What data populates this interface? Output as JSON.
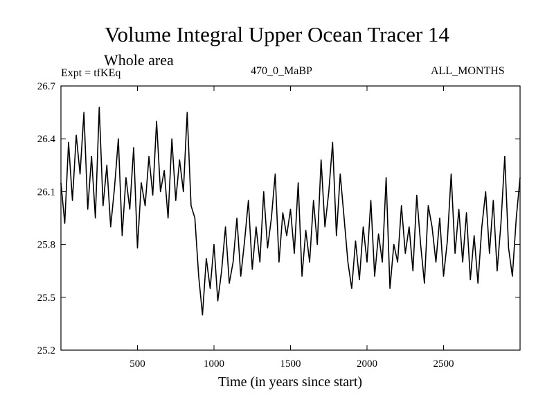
{
  "header": {
    "title": "Volume Integral Upper Ocean Tracer 14",
    "subtitle": "Whole area",
    "expt": "Expt = tfKEq",
    "run": "470_0_MaBP",
    "months": "ALL_MONTHS"
  },
  "chart_data": {
    "type": "line",
    "title": "Volume Integral Upper Ocean Tracer 14",
    "subtitle": "Whole area",
    "xlabel": "Time (in years since start)",
    "ylabel": "",
    "xlim": [
      0,
      3000
    ],
    "ylim": [
      25.2,
      26.7
    ],
    "xticks": [
      500,
      1000,
      1500,
      2000,
      2500
    ],
    "yticks": [
      25.2,
      25.5,
      25.8,
      26.1,
      26.4,
      26.7
    ],
    "ytick_labels": [
      "25.2",
      "25.5",
      "25.8",
      "26.1",
      "26.4",
      "26.7"
    ],
    "grid": false,
    "line_color": "#000000",
    "series": [
      {
        "x": [
          0,
          25,
          50,
          75,
          100,
          125,
          150,
          175,
          200,
          225,
          250,
          275,
          300,
          325,
          350,
          375,
          400,
          425,
          450,
          475,
          500,
          525,
          550,
          575,
          600,
          625,
          650,
          675,
          700,
          725,
          750,
          775,
          800,
          825,
          850,
          875,
          900,
          925,
          950,
          975,
          1000,
          1025,
          1050,
          1075,
          1100,
          1125,
          1150,
          1175,
          1200,
          1225,
          1250,
          1275,
          1300,
          1325,
          1350,
          1375,
          1400,
          1425,
          1450,
          1475,
          1500,
          1525,
          1550,
          1575,
          1600,
          1625,
          1650,
          1675,
          1700,
          1725,
          1750,
          1775,
          1800,
          1825,
          1850,
          1875,
          1900,
          1925,
          1950,
          1975,
          2000,
          2025,
          2050,
          2075,
          2100,
          2125,
          2150,
          2175,
          2200,
          2225,
          2250,
          2275,
          2300,
          2325,
          2350,
          2375,
          2400,
          2425,
          2450,
          2475,
          2500,
          2525,
          2550,
          2575,
          2600,
          2625,
          2650,
          2675,
          2700,
          2725,
          2750,
          2775,
          2800,
          2825,
          2850,
          2875,
          2900,
          2925,
          2950,
          2975,
          3000
        ],
        "values": [
          26.15,
          25.92,
          26.38,
          26.05,
          26.42,
          26.2,
          26.55,
          26.0,
          26.3,
          25.95,
          26.58,
          26.02,
          26.25,
          25.9,
          26.12,
          26.4,
          25.85,
          26.18,
          26.0,
          26.35,
          25.78,
          26.15,
          26.02,
          26.3,
          26.08,
          26.5,
          26.1,
          26.22,
          25.95,
          26.4,
          26.05,
          26.28,
          26.1,
          26.55,
          26.02,
          25.95,
          25.62,
          25.4,
          25.72,
          25.55,
          25.8,
          25.48,
          25.65,
          25.9,
          25.58,
          25.7,
          25.95,
          25.62,
          25.82,
          26.05,
          25.66,
          25.9,
          25.7,
          26.1,
          25.78,
          25.95,
          26.2,
          25.7,
          25.98,
          25.85,
          26.0,
          25.75,
          26.15,
          25.62,
          25.88,
          25.7,
          26.05,
          25.8,
          26.28,
          25.9,
          26.1,
          26.38,
          25.85,
          26.2,
          25.95,
          25.7,
          25.55,
          25.82,
          25.6,
          25.9,
          25.7,
          26.05,
          25.62,
          25.86,
          25.7,
          26.18,
          25.55,
          25.8,
          25.7,
          26.02,
          25.75,
          25.9,
          25.65,
          26.08,
          25.8,
          25.58,
          26.02,
          25.9,
          25.7,
          25.95,
          25.62,
          25.82,
          26.2,
          25.75,
          26.0,
          25.7,
          25.98,
          25.6,
          25.85,
          25.58,
          25.9,
          26.1,
          25.75,
          26.05,
          25.65,
          25.92,
          26.3,
          25.78,
          25.62,
          25.95,
          26.18
        ]
      }
    ]
  }
}
